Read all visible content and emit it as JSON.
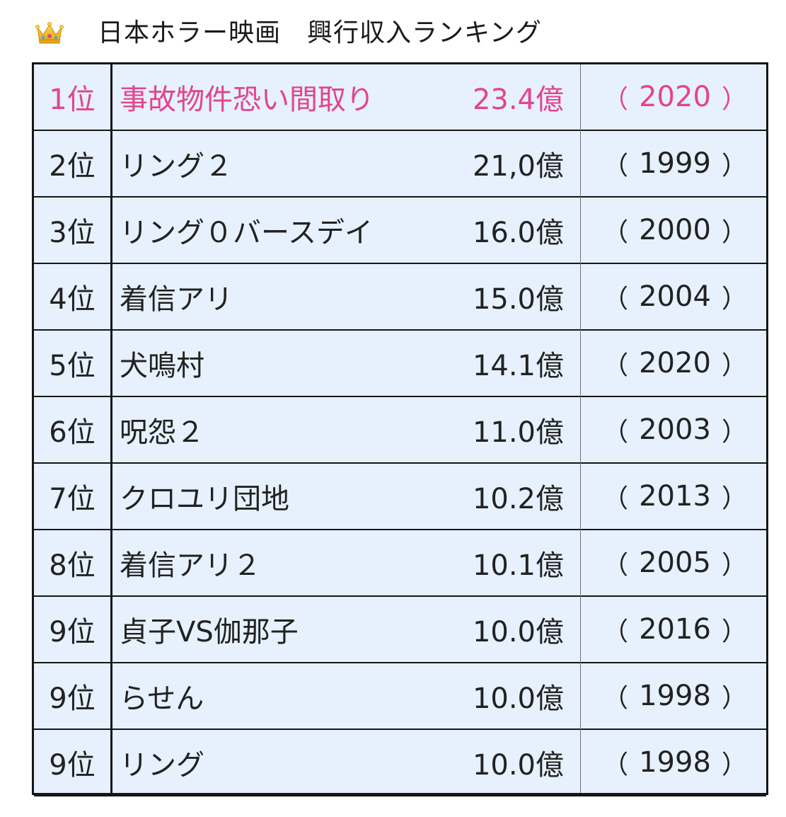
{
  "header": {
    "icon": "crown-icon",
    "title": "日本ホラー映画　興行収入ランキング"
  },
  "colors": {
    "highlight": "#e2448f",
    "table_bg": "#e6f1fd",
    "border": "#161616"
  },
  "paren_open": "（",
  "paren_close": "）",
  "rows": [
    {
      "rank": "1位",
      "title": "事故物件恐い間取り",
      "revenue": "23.4億",
      "year": "2020"
    },
    {
      "rank": "2位",
      "title": "リング２",
      "revenue": "21,0億",
      "year": "1999"
    },
    {
      "rank": "3位",
      "title": "リング０バースデイ",
      "revenue": "16.0億",
      "year": "2000"
    },
    {
      "rank": "4位",
      "title": "着信アリ",
      "revenue": "15.0億",
      "year": "2004"
    },
    {
      "rank": "5位",
      "title": "犬鳴村",
      "revenue": "14.1億",
      "year": "2020"
    },
    {
      "rank": "6位",
      "title": "呪怨２",
      "revenue": "11.0億",
      "year": "2003"
    },
    {
      "rank": "7位",
      "title": "クロユリ団地",
      "revenue": "10.2億",
      "year": "2013"
    },
    {
      "rank": "8位",
      "title": "着信アリ２",
      "revenue": "10.1億",
      "year": "2005"
    },
    {
      "rank": "9位",
      "title": "貞子VS伽那子",
      "revenue": "10.0億",
      "year": "2016"
    },
    {
      "rank": "9位",
      "title": "らせん",
      "revenue": "10.0億",
      "year": "1998"
    },
    {
      "rank": "9位",
      "title": "リング",
      "revenue": "10.0億",
      "year": "1998"
    }
  ]
}
